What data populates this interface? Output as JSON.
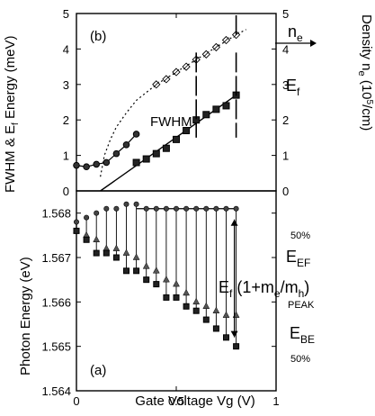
{
  "chart_data": [
    {
      "panel": "(b)",
      "type": "line",
      "xlabel": "",
      "ylabel": "FWHM & E_f Energy (meV)",
      "ylabel_right": "Density n_e (10^5/cm)",
      "xlim": [
        0,
        1
      ],
      "ylim": [
        0,
        5
      ],
      "ylim_right": [
        0,
        5
      ],
      "y_ticks": [
        "0",
        "1",
        "2",
        "3",
        "4",
        "5"
      ],
      "y_ticks_right": [
        "0",
        "1",
        "2",
        "3",
        "4",
        "5"
      ],
      "annotations": {
        "panel_label": "(b)",
        "fwhm": "FWHM",
        "ef": "E",
        "ef_sub": "f",
        "ne": "n",
        "ne_sub": "e",
        "ylabel_left": "FWHM & E",
        "ylabel_left_sub": "f",
        "ylabel_left_end": " Energy (meV)",
        "ylabel_right_main": "Density n",
        "ylabel_right_sub": "e",
        "ylabel_right_unit": " (10",
        "ylabel_right_exp": "5",
        "ylabel_right_end": "/cm)"
      },
      "series": [
        {
          "name": "FWHM",
          "marker": "filled-circle",
          "x": [
            0,
            0.05,
            0.1,
            0.15,
            0.2,
            0.25,
            0.3
          ],
          "y": [
            0.72,
            0.68,
            0.75,
            0.8,
            1.05,
            1.3,
            1.6
          ]
        },
        {
          "name": "E_f",
          "marker": "filled-square",
          "x": [
            0.3,
            0.35,
            0.4,
            0.45,
            0.5,
            0.55,
            0.6,
            0.65,
            0.7,
            0.75,
            0.8
          ],
          "y": [
            0.8,
            0.9,
            1.05,
            1.2,
            1.45,
            1.7,
            2.0,
            2.15,
            2.3,
            2.4,
            2.7
          ]
        },
        {
          "name": "E_f linear fit",
          "style": "solid-line",
          "x": [
            0.12,
            0.8
          ],
          "y": [
            0,
            2.7
          ]
        },
        {
          "name": "n_e",
          "marker": "open-diamond-slashed",
          "axis": "right",
          "x": [
            0.4,
            0.45,
            0.5,
            0.55,
            0.6,
            0.65,
            0.7,
            0.75,
            0.8
          ],
          "y": [
            3.0,
            3.15,
            3.35,
            3.5,
            3.7,
            3.85,
            4.05,
            4.25,
            4.4
          ]
        },
        {
          "name": "n_e fit",
          "style": "dotted-line",
          "axis": "right",
          "x": [
            0.12,
            0.14,
            0.17,
            0.2,
            0.25,
            0.3,
            0.4,
            0.5,
            0.6,
            0.7,
            0.8,
            0.85
          ],
          "y": [
            0.4,
            1.0,
            1.45,
            1.8,
            2.2,
            2.55,
            3.0,
            3.35,
            3.7,
            4.05,
            4.4,
            4.55
          ]
        }
      ],
      "vertical_markers_x": [
        0.6,
        0.8
      ]
    },
    {
      "panel": "(a)",
      "type": "scatter",
      "xlabel": "Gate Voltage Vg (V)",
      "ylabel": "Photon Energy (eV)",
      "xlim": [
        0,
        1
      ],
      "ylim": [
        1.564,
        1.5685
      ],
      "x_ticks": [
        "0",
        "0.5",
        "1"
      ],
      "y_ticks": [
        "1.564",
        "1.565",
        "1.566",
        "1.567",
        "1.568"
      ],
      "annotations": {
        "panel_label": "(a)",
        "pct_top": "50%",
        "pct_bottom": "50%",
        "eef": "E",
        "eef_sub": "EF",
        "ebe": "E",
        "ebe_sub": "BE",
        "peak": "PEAK",
        "formula_a": "E",
        "formula_a_sub": "f",
        "formula_b": " (1+m",
        "formula_b_sub": "e",
        "formula_c": "/m",
        "formula_c_sub": "h",
        "formula_d": ")"
      },
      "series": [
        {
          "name": "E_EF (50%)",
          "marker": "circle-with-error-bar",
          "x": [
            0,
            0.05,
            0.1,
            0.15,
            0.2,
            0.25,
            0.3,
            0.35,
            0.4,
            0.45,
            0.5,
            0.55,
            0.6,
            0.65,
            0.7,
            0.75,
            0.8
          ],
          "y": [
            1.5678,
            1.5679,
            1.568,
            1.5681,
            1.5681,
            1.5682,
            1.5682,
            1.5681,
            1.5681,
            1.5681,
            1.5681,
            1.5681,
            1.5681,
            1.5681,
            1.5681,
            1.5681,
            1.5681
          ]
        },
        {
          "name": "peak",
          "marker": "triangle",
          "x": [
            0,
            0.05,
            0.1,
            0.15,
            0.2,
            0.25,
            0.3,
            0.35,
            0.4,
            0.45,
            0.5,
            0.55,
            0.6,
            0.65,
            0.7,
            0.75,
            0.8
          ],
          "y": [
            1.5676,
            1.5675,
            1.5674,
            1.5672,
            1.5672,
            1.5671,
            1.567,
            1.5668,
            1.5667,
            1.5665,
            1.5664,
            1.5662,
            1.566,
            1.5659,
            1.5658,
            1.5657,
            1.5657
          ]
        },
        {
          "name": "E_BE (50%)",
          "marker": "filled-square-with-error-bar",
          "x": [
            0,
            0.05,
            0.1,
            0.15,
            0.2,
            0.25,
            0.3,
            0.35,
            0.4,
            0.45,
            0.5,
            0.55,
            0.6,
            0.65,
            0.7,
            0.75,
            0.8
          ],
          "y": [
            1.5676,
            1.5674,
            1.5671,
            1.5671,
            1.567,
            1.5667,
            1.5667,
            1.5665,
            1.5664,
            1.5661,
            1.5661,
            1.5659,
            1.5658,
            1.5656,
            1.5654,
            1.5652,
            1.565
          ]
        }
      ],
      "vertical_gap_marker": {
        "x": 0.8,
        "from": 1.5681,
        "to": 1.565
      }
    }
  ]
}
